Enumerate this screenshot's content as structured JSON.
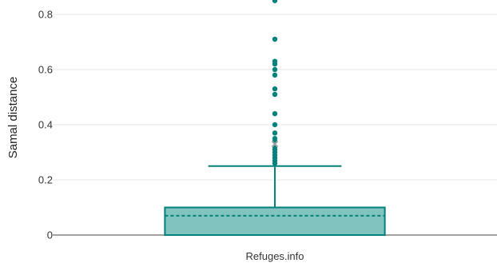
{
  "chart_data": {
    "type": "box",
    "title": "",
    "xlabel": "",
    "ylabel": "Samal distance",
    "ylim": [
      0,
      0.85
    ],
    "yticks": [
      0,
      0.2,
      0.4,
      0.6,
      0.8
    ],
    "ytick_labels": [
      "0",
      "0.2",
      "0.4",
      "0.6",
      "0.8"
    ],
    "grid": true,
    "colors": {
      "box_fill": "#80c3bf",
      "box_stroke": "#00827b",
      "outlier": "#00827b",
      "mean_marker": "#9aa3a3"
    },
    "boxes": [
      {
        "category": "Refuges.info",
        "q1": 0.0,
        "median": 0.07,
        "q3": 0.1,
        "whisker_low": 0.0,
        "whisker_high": 0.25,
        "mean": 0.33,
        "outliers": [
          0.26,
          0.27,
          0.28,
          0.29,
          0.3,
          0.31,
          0.32,
          0.34,
          0.35,
          0.37,
          0.4,
          0.44,
          0.51,
          0.53,
          0.58,
          0.6,
          0.62,
          0.63,
          0.71,
          0.85
        ]
      }
    ]
  }
}
